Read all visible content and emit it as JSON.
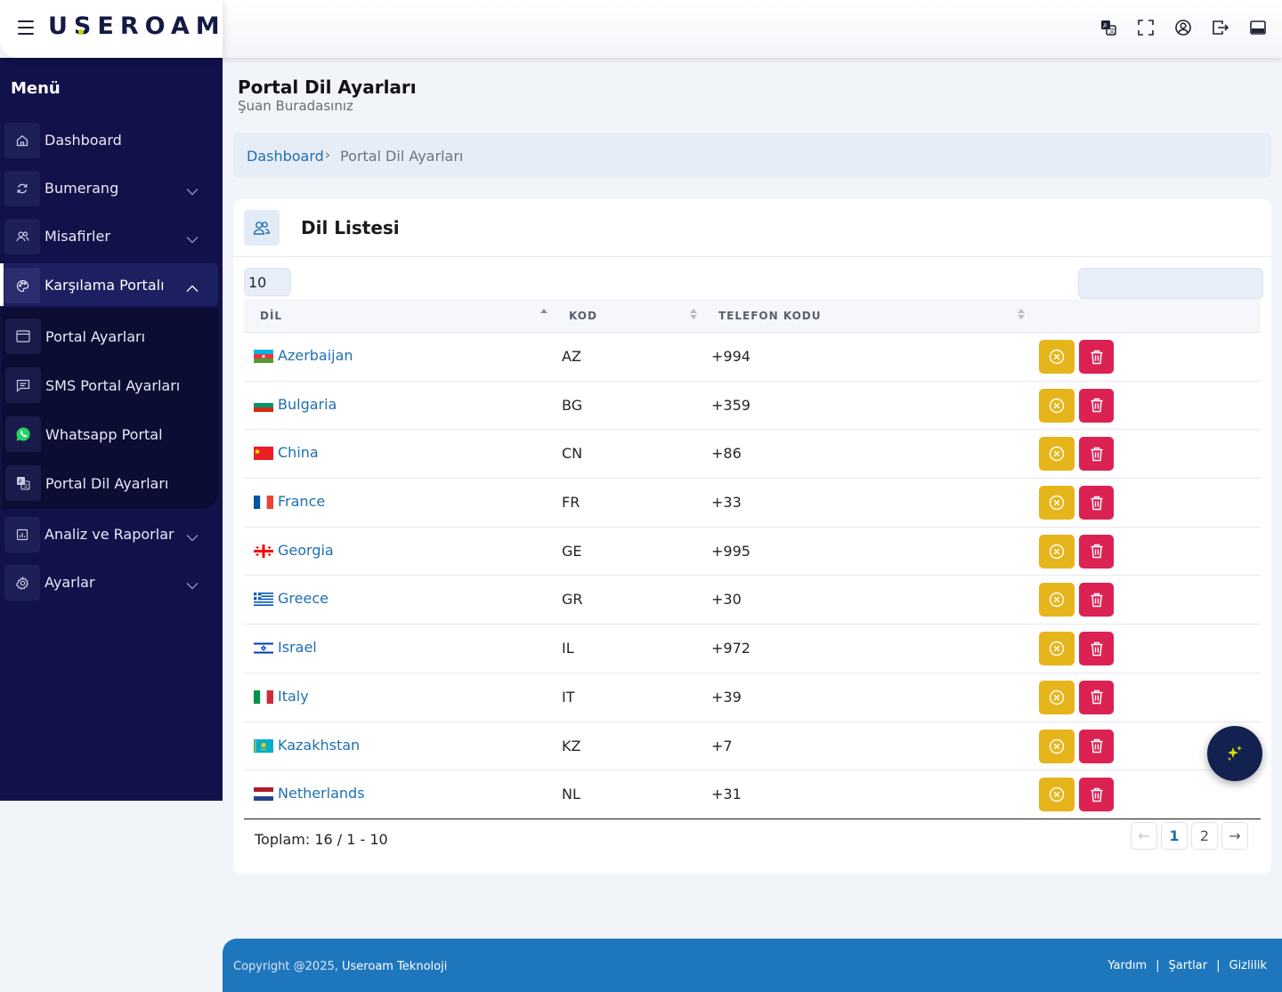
{
  "header": {
    "logo_text": "USEROAM",
    "icons": [
      "translate-icon",
      "fullscreen-icon",
      "user-icon",
      "logout-icon",
      "layout-icon"
    ]
  },
  "sidebar": {
    "title": "Menü",
    "items": [
      {
        "label": "Dashboard",
        "icon": "home-icon"
      },
      {
        "label": "Bumerang",
        "icon": "refresh-icon"
      },
      {
        "label": "Misafirler",
        "icon": "users-icon"
      },
      {
        "label": "Karşılama Portalı",
        "icon": "palette-icon"
      },
      {
        "label": "Analiz ve Raporlar",
        "icon": "chart-icon"
      },
      {
        "label": "Ayarlar",
        "icon": "gear-icon"
      }
    ],
    "submenu": [
      {
        "label": "Portal Ayarları",
        "icon": "browser-icon"
      },
      {
        "label": "SMS Portal Ayarları",
        "icon": "message-icon"
      },
      {
        "label": "Whatsapp Portal",
        "icon": "whatsapp-icon"
      },
      {
        "label": "Portal Dil Ayarları",
        "icon": "translate-icon"
      }
    ]
  },
  "page": {
    "title": "Portal Dil Ayarları",
    "subtitle": "Şuan Buradasınız"
  },
  "breadcrumb": {
    "link": "Dashboard",
    "separator": "›",
    "current": "Portal Dil Ayarları"
  },
  "card": {
    "title": "Dil Listesi",
    "page_size": "10",
    "search_placeholder": ""
  },
  "table": {
    "headers": [
      "DİL",
      "KOD",
      "TELEFON KODU"
    ],
    "rows": [
      {
        "name": "Azerbaijan",
        "code": "AZ",
        "phone": "+994"
      },
      {
        "name": "Bulgaria",
        "code": "BG",
        "phone": "+359"
      },
      {
        "name": "China",
        "code": "CN",
        "phone": "+86"
      },
      {
        "name": "France",
        "code": "FR",
        "phone": "+33"
      },
      {
        "name": "Georgia",
        "code": "GE",
        "phone": "+995"
      },
      {
        "name": "Greece",
        "code": "GR",
        "phone": "+30"
      },
      {
        "name": "Israel",
        "code": "IL",
        "phone": "+972"
      },
      {
        "name": "Italy",
        "code": "IT",
        "phone": "+39"
      },
      {
        "name": "Kazakhstan",
        "code": "KZ",
        "phone": "+7"
      },
      {
        "name": "Netherlands",
        "code": "NL",
        "phone": "+31"
      }
    ]
  },
  "pagination": {
    "total": "Toplam: 16 / 1 - 10",
    "prev": "←",
    "pages": [
      "1",
      "2"
    ],
    "next": "→",
    "current": "1"
  },
  "footer": {
    "copyright": "Copyright @2025,",
    "company": "Useroam Teknoloji",
    "links": [
      "Yardım",
      "Şartlar",
      "Gizlilik"
    ],
    "separator": "|"
  },
  "colors": {
    "sidebar_bg": "#12124a",
    "accent_blue": "#1f6fb2",
    "edit_yellow": "#e6b51b",
    "delete_red": "#db2253",
    "footer_blue": "#1e76bd"
  }
}
